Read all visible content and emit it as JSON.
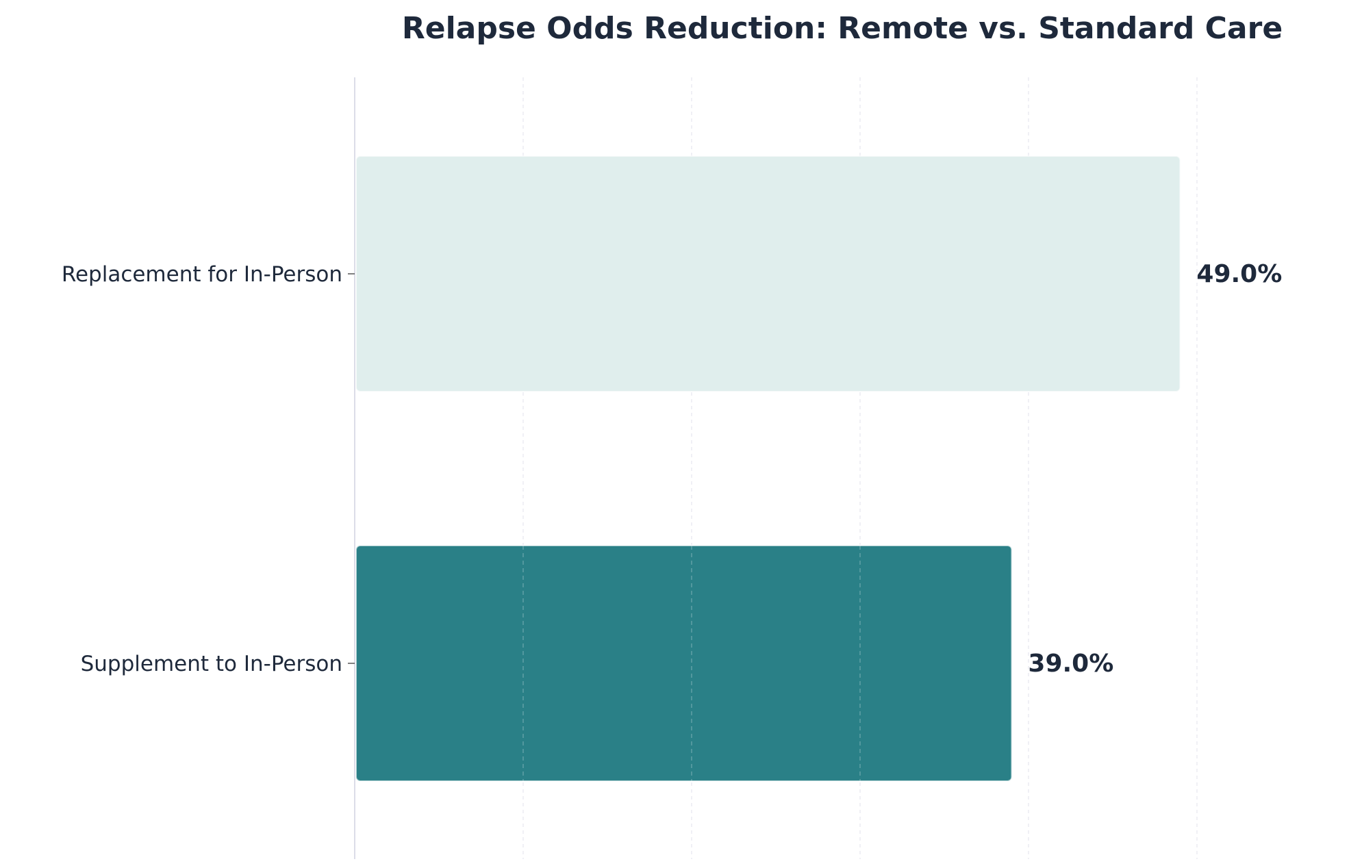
{
  "chart_data": {
    "type": "bar",
    "orientation": "horizontal",
    "title": "Relapse Odds Reduction: Remote vs. Standard Care",
    "xlabel": "",
    "ylabel": "",
    "categories": [
      "Replacement for In-Person",
      "Supplement to In-Person"
    ],
    "values": [
      49.0,
      39.0
    ],
    "value_labels": [
      "49.0%",
      "39.0%"
    ],
    "bar_colors": [
      "#e0eeed",
      "#2a8087"
    ],
    "xlim": [
      0,
      60
    ],
    "grid": true,
    "grid_axis": "x",
    "legend": "none"
  }
}
